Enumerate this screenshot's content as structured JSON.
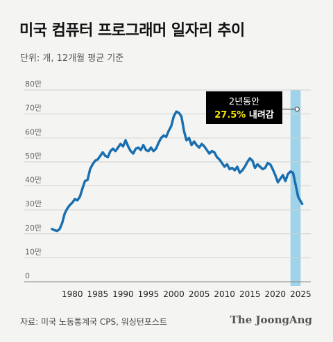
{
  "title": "미국 컴퓨터 프로그래머 일자리 추이",
  "subtitle": "단위: 개, 12개월 평균 기준",
  "source": "자료: 미국 노동통계국 CPS, 워싱턴포스트",
  "brand": "The JoongAng",
  "colors": {
    "line": "#1a6fb0",
    "highlight": "#9fd3ea",
    "grid": "#cfcfcf",
    "callout_bg": "#000000",
    "callout_accent": "#f5e300"
  },
  "chart_data": {
    "type": "line",
    "title": "미국 컴퓨터 프로그래머 일자리 추이",
    "ylabel": "단위: 개, 12개월 평균 기준",
    "xlabel": "",
    "ylim": [
      0,
      800000
    ],
    "xlim": [
      1976,
      2027
    ],
    "yticks": [
      {
        "value": 0,
        "label": "0"
      },
      {
        "value": 100000,
        "label": "10만"
      },
      {
        "value": 200000,
        "label": "20만"
      },
      {
        "value": 300000,
        "label": "30만"
      },
      {
        "value": 400000,
        "label": "40만"
      },
      {
        "value": 500000,
        "label": "50만"
      },
      {
        "value": 600000,
        "label": "60만"
      },
      {
        "value": 700000,
        "label": "70만"
      },
      {
        "value": 800000,
        "label": "80만"
      }
    ],
    "xticks": [
      {
        "value": 1980,
        "label": "1980"
      },
      {
        "value": 1985,
        "label": "1985"
      },
      {
        "value": 1990,
        "label": "1990"
      },
      {
        "value": 1995,
        "label": "1995"
      },
      {
        "value": 2000,
        "label": "2000"
      },
      {
        "value": 2005,
        "label": "2005"
      },
      {
        "value": 2010,
        "label": "2010"
      },
      {
        "value": 2015,
        "label": "2015"
      },
      {
        "value": 2020,
        "label": "2020"
      },
      {
        "value": 2025,
        "label": "2025"
      }
    ],
    "grid": true,
    "highlight_range": [
      2023,
      2025
    ],
    "annotation": {
      "line1": "2년동안",
      "highlight": "27.5%",
      "rest": " 내려감",
      "x": 2024.3,
      "y": 720000
    },
    "series": [
      {
        "points": [
          [
            1976.0,
            220000
          ],
          [
            1976.5,
            215000
          ],
          [
            1977.0,
            212000
          ],
          [
            1977.5,
            220000
          ],
          [
            1978.0,
            245000
          ],
          [
            1978.5,
            285000
          ],
          [
            1979.0,
            305000
          ],
          [
            1979.5,
            320000
          ],
          [
            1980.0,
            330000
          ],
          [
            1980.5,
            345000
          ],
          [
            1981.0,
            340000
          ],
          [
            1981.5,
            355000
          ],
          [
            1982.0,
            390000
          ],
          [
            1982.5,
            420000
          ],
          [
            1983.0,
            425000
          ],
          [
            1983.5,
            470000
          ],
          [
            1984.0,
            490000
          ],
          [
            1984.5,
            505000
          ],
          [
            1985.0,
            510000
          ],
          [
            1985.5,
            525000
          ],
          [
            1986.0,
            540000
          ],
          [
            1986.5,
            525000
          ],
          [
            1987.0,
            520000
          ],
          [
            1987.5,
            545000
          ],
          [
            1988.0,
            555000
          ],
          [
            1988.5,
            545000
          ],
          [
            1989.0,
            560000
          ],
          [
            1989.5,
            575000
          ],
          [
            1990.0,
            565000
          ],
          [
            1990.5,
            590000
          ],
          [
            1991.0,
            565000
          ],
          [
            1991.5,
            545000
          ],
          [
            1992.0,
            535000
          ],
          [
            1992.5,
            555000
          ],
          [
            1993.0,
            560000
          ],
          [
            1993.5,
            550000
          ],
          [
            1994.0,
            570000
          ],
          [
            1994.5,
            550000
          ],
          [
            1995.0,
            545000
          ],
          [
            1995.5,
            560000
          ],
          [
            1996.0,
            545000
          ],
          [
            1996.5,
            555000
          ],
          [
            1997.0,
            580000
          ],
          [
            1997.5,
            600000
          ],
          [
            1998.0,
            610000
          ],
          [
            1998.5,
            605000
          ],
          [
            1999.0,
            630000
          ],
          [
            1999.5,
            650000
          ],
          [
            2000.0,
            690000
          ],
          [
            2000.5,
            710000
          ],
          [
            2001.0,
            705000
          ],
          [
            2001.5,
            690000
          ],
          [
            2002.0,
            630000
          ],
          [
            2002.5,
            590000
          ],
          [
            2003.0,
            600000
          ],
          [
            2003.5,
            570000
          ],
          [
            2004.0,
            585000
          ],
          [
            2004.5,
            570000
          ],
          [
            2005.0,
            560000
          ],
          [
            2005.5,
            575000
          ],
          [
            2006.0,
            565000
          ],
          [
            2006.5,
            550000
          ],
          [
            2007.0,
            535000
          ],
          [
            2007.5,
            545000
          ],
          [
            2008.0,
            540000
          ],
          [
            2008.5,
            520000
          ],
          [
            2009.0,
            510000
          ],
          [
            2009.5,
            495000
          ],
          [
            2010.0,
            480000
          ],
          [
            2010.5,
            490000
          ],
          [
            2011.0,
            470000
          ],
          [
            2011.5,
            475000
          ],
          [
            2012.0,
            465000
          ],
          [
            2012.5,
            480000
          ],
          [
            2013.0,
            455000
          ],
          [
            2013.5,
            465000
          ],
          [
            2014.0,
            480000
          ],
          [
            2014.5,
            500000
          ],
          [
            2015.0,
            515000
          ],
          [
            2015.5,
            505000
          ],
          [
            2016.0,
            475000
          ],
          [
            2016.5,
            490000
          ],
          [
            2017.0,
            480000
          ],
          [
            2017.5,
            470000
          ],
          [
            2018.0,
            475000
          ],
          [
            2018.5,
            495000
          ],
          [
            2019.0,
            490000
          ],
          [
            2019.5,
            470000
          ],
          [
            2020.0,
            445000
          ],
          [
            2020.5,
            415000
          ],
          [
            2021.0,
            430000
          ],
          [
            2021.5,
            445000
          ],
          [
            2022.0,
            420000
          ],
          [
            2022.5,
            450000
          ],
          [
            2023.0,
            460000
          ],
          [
            2023.5,
            455000
          ],
          [
            2024.0,
            405000
          ],
          [
            2024.5,
            355000
          ],
          [
            2025.0,
            335000
          ],
          [
            2025.3,
            325000
          ]
        ]
      }
    ]
  }
}
